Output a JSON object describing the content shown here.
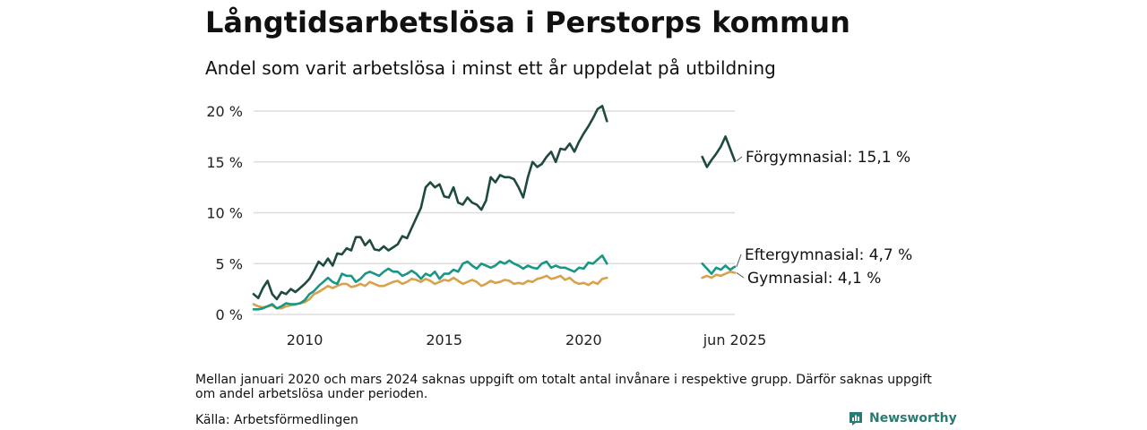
{
  "header": {
    "title": "Långtidsarbetslösa i Perstorps kommun",
    "subtitle": "Andel som varit arbetslösa i minst ett år uppdelat på utbildning"
  },
  "footer": {
    "note": "Mellan januari 2020 och mars 2024 saknas uppgift om totalt antal invånare i respektive grupp. Därför saknas uppgift om andel arbetslösa under perioden.",
    "source": "Källa: Arbetsförmedlingen",
    "brand": "Newsworthy"
  },
  "colors": {
    "forgymnasial": "#1f4a42",
    "eftergymnasial": "#1a9684",
    "gymnasial": "#d9a24a",
    "grid": "#dddddd",
    "brand": "#2a7a73"
  },
  "icons": {
    "brand": "newsworthy-logo-icon"
  },
  "chart_data": {
    "type": "line",
    "title": "Långtidsarbetslösa i Perstorps kommun",
    "subtitle": "Andel som varit arbetslösa i minst ett år uppdelat på utbildning",
    "xlabel": "",
    "ylabel": "",
    "y_ticks": [
      {
        "value": 0,
        "label": "0 %"
      },
      {
        "value": 5,
        "label": "5 %"
      },
      {
        "value": 10,
        "label": "10 %"
      },
      {
        "value": 15,
        "label": "15 %"
      },
      {
        "value": 20,
        "label": "20 %"
      }
    ],
    "x_ticks": [
      "2010",
      "2015",
      "2020",
      "jun 2025"
    ],
    "ylim": [
      0,
      21
    ],
    "grid": true,
    "legend": "end labels",
    "series": [
      {
        "name": "Förgymnasial",
        "end_label": "Förgymnasial: 15,1 %",
        "color_key": "forgymnasial",
        "segments": [
          {
            "x": [
              "2008-03",
              "2008-05",
              "2008-07",
              "2008-09",
              "2008-11",
              "2009-01",
              "2009-03",
              "2009-05",
              "2009-07",
              "2009-09",
              "2009-11",
              "2010-01",
              "2010-03",
              "2010-05",
              "2010-07",
              "2010-09",
              "2010-11",
              "2011-01",
              "2011-03",
              "2011-05",
              "2011-07",
              "2011-09",
              "2011-11",
              "2012-01",
              "2012-03",
              "2012-05",
              "2012-07",
              "2012-09",
              "2012-11",
              "2013-01",
              "2013-03",
              "2013-05",
              "2013-07",
              "2013-09",
              "2013-11",
              "2014-01",
              "2014-03",
              "2014-05",
              "2014-07",
              "2014-09",
              "2014-11",
              "2015-01",
              "2015-03",
              "2015-05",
              "2015-07",
              "2015-09",
              "2015-11",
              "2016-01",
              "2016-03",
              "2016-05",
              "2016-07",
              "2016-09",
              "2016-11",
              "2017-01",
              "2017-03",
              "2017-05",
              "2017-07",
              "2017-09",
              "2017-11",
              "2018-01",
              "2018-03",
              "2018-05",
              "2018-07",
              "2018-09",
              "2018-11",
              "2019-01",
              "2019-03",
              "2019-05",
              "2019-07",
              "2019-09",
              "2019-11",
              "2020-01",
              "2020-03",
              "2020-05",
              "2020-07",
              "2020-09",
              "2020-11"
            ],
            "y": [
              2.0,
              1.6,
              2.6,
              3.3,
              2.0,
              1.5,
              2.2,
              2.0,
              2.5,
              2.2,
              2.6,
              3.0,
              3.5,
              4.3,
              5.2,
              4.8,
              5.5,
              4.8,
              6.0,
              5.9,
              6.5,
              6.3,
              7.6,
              7.6,
              6.8,
              7.3,
              6.4,
              6.3,
              6.7,
              6.3,
              6.6,
              6.9,
              7.7,
              7.5,
              8.5,
              9.5,
              10.5,
              12.5,
              13.0,
              12.5,
              12.8,
              11.6,
              11.5,
              12.5,
              11.0,
              10.8,
              11.5,
              11.0,
              10.8,
              10.3,
              11.2,
              13.5,
              13.0,
              13.7,
              13.5,
              13.5,
              13.3,
              12.5,
              11.5,
              13.5,
              15.0,
              14.5,
              14.8,
              15.5,
              16.0,
              15.0,
              16.3,
              16.2,
              16.8,
              16.0,
              17.0,
              17.8,
              18.5,
              19.3,
              20.2,
              20.5,
              19.0
            ]
          },
          {
            "x": [
              "2024-04",
              "2024-06",
              "2024-08",
              "2024-10",
              "2024-12",
              "2025-02",
              "2025-04",
              "2025-06"
            ],
            "y": [
              15.5,
              14.5,
              15.2,
              15.8,
              16.5,
              17.5,
              16.3,
              15.1
            ]
          }
        ]
      },
      {
        "name": "Eftergymnasial",
        "end_label": "Eftergymnasial:  4,7 %",
        "color_key": "eftergymnasial",
        "segments": [
          {
            "x": [
              "2008-03",
              "2008-05",
              "2008-07",
              "2008-09",
              "2008-11",
              "2009-01",
              "2009-03",
              "2009-05",
              "2009-07",
              "2009-09",
              "2009-11",
              "2010-01",
              "2010-03",
              "2010-05",
              "2010-07",
              "2010-09",
              "2010-11",
              "2011-01",
              "2011-03",
              "2011-05",
              "2011-07",
              "2011-09",
              "2011-11",
              "2012-01",
              "2012-03",
              "2012-05",
              "2012-07",
              "2012-09",
              "2012-11",
              "2013-01",
              "2013-03",
              "2013-05",
              "2013-07",
              "2013-09",
              "2013-11",
              "2014-01",
              "2014-03",
              "2014-05",
              "2014-07",
              "2014-09",
              "2014-11",
              "2015-01",
              "2015-03",
              "2015-05",
              "2015-07",
              "2015-09",
              "2015-11",
              "2016-01",
              "2016-03",
              "2016-05",
              "2016-07",
              "2016-09",
              "2016-11",
              "2017-01",
              "2017-03",
              "2017-05",
              "2017-07",
              "2017-09",
              "2017-11",
              "2018-01",
              "2018-03",
              "2018-05",
              "2018-07",
              "2018-09",
              "2018-11",
              "2019-01",
              "2019-03",
              "2019-05",
              "2019-07",
              "2019-09",
              "2019-11",
              "2020-01",
              "2020-03",
              "2020-05",
              "2020-07",
              "2020-09",
              "2020-11"
            ],
            "y": [
              0.5,
              0.5,
              0.6,
              0.8,
              1.0,
              0.6,
              0.8,
              1.1,
              1.0,
              1.0,
              1.1,
              1.4,
              2.0,
              2.3,
              2.8,
              3.2,
              3.6,
              3.2,
              3.0,
              4.0,
              3.8,
              3.8,
              3.2,
              3.5,
              4.0,
              4.2,
              4.0,
              3.8,
              4.2,
              4.5,
              4.2,
              4.2,
              3.8,
              4.0,
              4.3,
              4.0,
              3.5,
              4.0,
              3.8,
              4.2,
              3.5,
              4.0,
              4.0,
              4.4,
              4.2,
              5.0,
              5.2,
              4.8,
              4.5,
              5.0,
              4.8,
              4.6,
              4.8,
              5.2,
              5.0,
              5.3,
              5.0,
              4.8,
              4.5,
              4.8,
              4.6,
              4.5,
              5.0,
              5.2,
              4.6,
              4.8,
              4.6,
              4.6,
              4.4,
              4.2,
              4.6,
              4.5,
              5.1,
              5.0,
              5.4,
              5.8,
              5.0
            ]
          },
          {
            "x": [
              "2024-04",
              "2024-06",
              "2024-08",
              "2024-10",
              "2024-12",
              "2025-02",
              "2025-04",
              "2025-06"
            ],
            "y": [
              5.0,
              4.5,
              4.0,
              4.6,
              4.4,
              4.8,
              4.4,
              4.7
            ]
          }
        ]
      },
      {
        "name": "Gymnasial",
        "end_label": "Gymnasial:  4,1 %",
        "color_key": "gymnasial",
        "segments": [
          {
            "x": [
              "2008-03",
              "2008-05",
              "2008-07",
              "2008-09",
              "2008-11",
              "2009-01",
              "2009-03",
              "2009-05",
              "2009-07",
              "2009-09",
              "2009-11",
              "2010-01",
              "2010-03",
              "2010-05",
              "2010-07",
              "2010-09",
              "2010-11",
              "2011-01",
              "2011-03",
              "2011-05",
              "2011-07",
              "2011-09",
              "2011-11",
              "2012-01",
              "2012-03",
              "2012-05",
              "2012-07",
              "2012-09",
              "2012-11",
              "2013-01",
              "2013-03",
              "2013-05",
              "2013-07",
              "2013-09",
              "2013-11",
              "2014-01",
              "2014-03",
              "2014-05",
              "2014-07",
              "2014-09",
              "2014-11",
              "2015-01",
              "2015-03",
              "2015-05",
              "2015-07",
              "2015-09",
              "2015-11",
              "2016-01",
              "2016-03",
              "2016-05",
              "2016-07",
              "2016-09",
              "2016-11",
              "2017-01",
              "2017-03",
              "2017-05",
              "2017-07",
              "2017-09",
              "2017-11",
              "2018-01",
              "2018-03",
              "2018-05",
              "2018-07",
              "2018-09",
              "2018-11",
              "2019-01",
              "2019-03",
              "2019-05",
              "2019-07",
              "2019-09",
              "2019-11",
              "2020-01",
              "2020-03",
              "2020-05",
              "2020-07",
              "2020-09",
              "2020-11"
            ],
            "y": [
              1.0,
              0.8,
              0.7,
              0.8,
              0.9,
              0.6,
              0.6,
              0.8,
              0.9,
              1.0,
              1.1,
              1.2,
              1.5,
              2.0,
              2.2,
              2.5,
              2.8,
              2.6,
              2.8,
              3.0,
              3.0,
              2.7,
              2.8,
              3.0,
              2.8,
              3.2,
              3.0,
              2.8,
              2.8,
              3.0,
              3.2,
              3.3,
              3.0,
              3.2,
              3.5,
              3.4,
              3.2,
              3.5,
              3.3,
              3.0,
              3.2,
              3.4,
              3.3,
              3.6,
              3.3,
              3.0,
              3.2,
              3.4,
              3.2,
              2.8,
              3.0,
              3.3,
              3.1,
              3.2,
              3.4,
              3.3,
              3.0,
              3.1,
              3.0,
              3.3,
              3.2,
              3.5,
              3.6,
              3.8,
              3.5,
              3.6,
              3.8,
              3.4,
              3.6,
              3.2,
              3.0,
              3.1,
              2.9,
              3.2,
              3.0,
              3.5,
              3.6
            ]
          },
          {
            "x": [
              "2024-04",
              "2024-06",
              "2024-08",
              "2024-10",
              "2024-12",
              "2025-02",
              "2025-04",
              "2025-06"
            ],
            "y": [
              3.6,
              3.8,
              3.6,
              3.9,
              3.8,
              4.0,
              4.2,
              4.1
            ]
          }
        ]
      }
    ]
  }
}
